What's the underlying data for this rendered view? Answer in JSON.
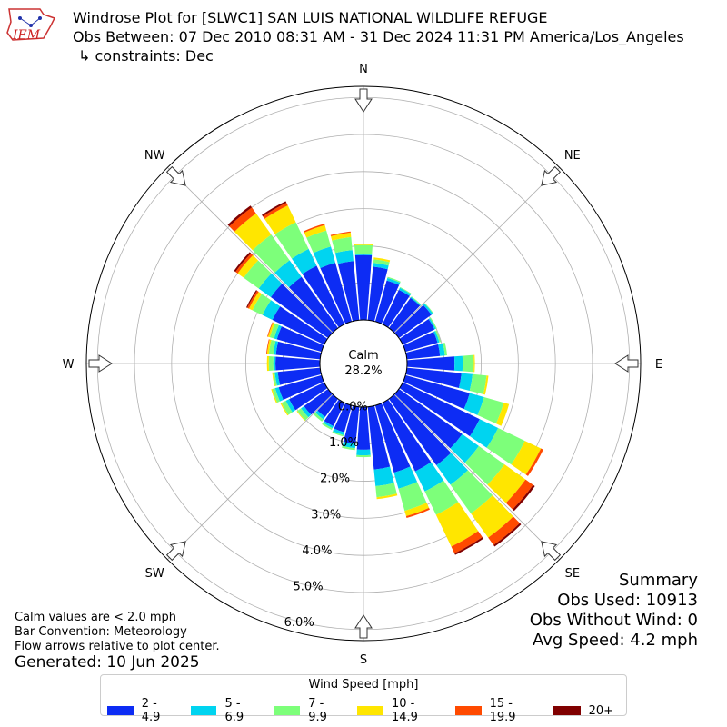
{
  "header": {
    "line1": "Windrose Plot for [SLWC1] SAN LUIS NATIONAL WILDLIFE REFUGE",
    "line2": "Obs Between: 07 Dec 2010 08:31 AM - 31 Dec 2024 11:31 PM America/Los_Angeles",
    "line3": "↳ constraints: Dec",
    "logo_text": "IEM"
  },
  "center": {
    "label": "Calm",
    "value": "28.2%"
  },
  "notes": {
    "line1": "Calm values are < 2.0 mph",
    "line2": "Bar Convention: Meteorology",
    "line3": "Flow arrows relative to plot center.",
    "generated": "Generated: 10 Jun 2025"
  },
  "summary": {
    "title": "Summary",
    "obs_used": "Obs Used: 10913",
    "obs_without_wind": "Obs Without Wind: 0",
    "avg_speed": "Avg Speed: 4.2 mph"
  },
  "colors": {
    "2 - 4.9": "#0d2cf4",
    "5 - 6.9": "#00d4f0",
    "7 - 9.9": "#7dff7a",
    "10 - 14.9": "#ffe600",
    "15 - 19.9": "#ff4a00",
    "20+": "#800000"
  },
  "chart_data": {
    "type": "windrose",
    "directions": [
      "N",
      "NE",
      "E",
      "SE",
      "S",
      "SW",
      "W",
      "NW"
    ],
    "radial_ticks": [
      "0.0%",
      "1.0%",
      "2.0%",
      "3.0%",
      "4.0%",
      "5.0%",
      "6.0%"
    ],
    "rmax": 6.3,
    "legend": {
      "title": "Wind Speed [mph]",
      "bins": [
        "2 - 4.9",
        "5 - 6.9",
        "7 - 9.9",
        "10 - 14.9",
        "15 - 19.9",
        "20+"
      ]
    },
    "sector_width_deg": 10,
    "sectors": [
      {
        "dir": 0,
        "values": [
          1.75,
          0.02,
          0.25,
          0.03,
          0.0,
          0.0
        ]
      },
      {
        "dir": 10,
        "values": [
          1.45,
          0.1,
          0.1,
          0.05,
          0.0,
          0.0
        ]
      },
      {
        "dir": 20,
        "values": [
          1.15,
          0.07,
          0.03,
          0.0,
          0.0,
          0.0
        ]
      },
      {
        "dir": 30,
        "values": [
          1.03,
          0.06,
          0.02,
          0.0,
          0.0,
          0.0
        ]
      },
      {
        "dir": 40,
        "values": [
          1.0,
          0.03,
          0.02,
          0.0,
          0.0,
          0.0
        ]
      },
      {
        "dir": 50,
        "values": [
          1.08,
          0.05,
          0.02,
          0.0,
          0.0,
          0.0
        ]
      },
      {
        "dir": 60,
        "values": [
          0.95,
          0.04,
          0.03,
          0.0,
          0.0,
          0.0
        ]
      },
      {
        "dir": 70,
        "values": [
          0.9,
          0.05,
          0.04,
          0.0,
          0.0,
          0.0
        ]
      },
      {
        "dir": 80,
        "values": [
          0.9,
          0.13,
          0.06,
          0.0,
          0.0,
          0.0
        ]
      },
      {
        "dir": 90,
        "values": [
          1.28,
          0.22,
          0.3,
          0.03,
          0.0,
          0.0
        ]
      },
      {
        "dir": 100,
        "values": [
          1.48,
          0.3,
          0.38,
          0.05,
          0.0,
          0.0
        ]
      },
      {
        "dir": 110,
        "values": [
          1.8,
          0.4,
          0.55,
          0.15,
          0.0,
          0.0
        ]
      },
      {
        "dir": 120,
        "values": [
          2.3,
          0.55,
          0.8,
          0.48,
          0.07,
          0.0
        ]
      },
      {
        "dir": 130,
        "values": [
          2.1,
          0.55,
          0.85,
          0.7,
          0.25,
          0.06
        ]
      },
      {
        "dir": 140,
        "values": [
          2.2,
          0.65,
          0.95,
          0.8,
          0.25,
          0.05
        ]
      },
      {
        "dir": 150,
        "values": [
          2.05,
          0.6,
          0.7,
          0.95,
          0.2,
          0.05
        ]
      },
      {
        "dir": 160,
        "values": [
          1.88,
          0.45,
          0.62,
          0.15,
          0.05,
          0.0
        ]
      },
      {
        "dir": 170,
        "values": [
          1.7,
          0.45,
          0.3,
          0.05,
          0.0,
          0.0
        ]
      },
      {
        "dir": 180,
        "values": [
          1.15,
          0.15,
          0.05,
          0.0,
          0.0,
          0.0
        ]
      },
      {
        "dir": 190,
        "values": [
          1.0,
          0.12,
          0.05,
          0.0,
          0.0,
          0.0
        ]
      },
      {
        "dir": 200,
        "values": [
          0.75,
          0.08,
          0.04,
          0.0,
          0.0,
          0.0
        ]
      },
      {
        "dir": 210,
        "values": [
          0.7,
          0.06,
          0.05,
          0.0,
          0.0,
          0.0
        ]
      },
      {
        "dir": 220,
        "values": [
          0.6,
          0.08,
          0.07,
          0.0,
          0.0,
          0.0
        ]
      },
      {
        "dir": 230,
        "values": [
          0.8,
          0.1,
          0.12,
          0.02,
          0.0,
          0.0
        ]
      },
      {
        "dir": 240,
        "values": [
          1.05,
          0.1,
          0.13,
          0.03,
          0.0,
          0.0
        ]
      },
      {
        "dir": 250,
        "values": [
          1.2,
          0.1,
          0.08,
          0.03,
          0.0,
          0.0
        ]
      },
      {
        "dir": 260,
        "values": [
          1.15,
          0.08,
          0.05,
          0.02,
          0.0,
          0.0
        ]
      },
      {
        "dir": 270,
        "values": [
          1.2,
          0.06,
          0.12,
          0.05,
          0.0,
          0.0
        ]
      },
      {
        "dir": 280,
        "values": [
          1.2,
          0.07,
          0.12,
          0.05,
          0.02,
          0.0
        ]
      },
      {
        "dir": 290,
        "values": [
          1.25,
          0.08,
          0.12,
          0.05,
          0.02,
          0.0
        ]
      },
      {
        "dir": 300,
        "values": [
          1.55,
          0.3,
          0.3,
          0.1,
          0.05,
          0.03
        ]
      },
      {
        "dir": 310,
        "values": [
          1.9,
          0.4,
          0.5,
          0.2,
          0.07,
          0.05
        ]
      },
      {
        "dir": 320,
        "values": [
          1.7,
          0.55,
          0.85,
          0.7,
          0.2,
          0.06
        ]
      },
      {
        "dir": 330,
        "values": [
          1.75,
          0.5,
          0.8,
          0.5,
          0.08,
          0.05
        ]
      },
      {
        "dir": 340,
        "values": [
          1.65,
          0.45,
          0.45,
          0.15,
          0.04,
          0.0
        ]
      },
      {
        "dir": 350,
        "values": [
          1.6,
          0.3,
          0.35,
          0.12,
          0.03,
          0.0
        ]
      }
    ]
  }
}
